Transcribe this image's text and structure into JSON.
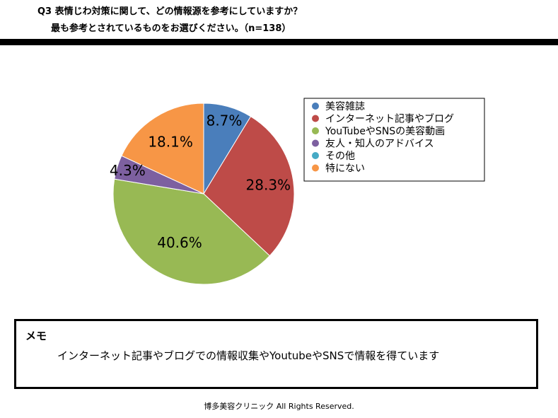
{
  "header": {
    "question_line1": "Q3 表情じわ対策に関して、どの情報源を参考にしていますか？",
    "question_line2": "最も参考とされているものをお選びください。（n=138）"
  },
  "chart_data": {
    "type": "pie",
    "title": "",
    "unit": "%",
    "start_angle_deg": 0,
    "direction": "clockwise",
    "legend_position": "right",
    "categories": [
      "美容雑誌",
      "インターネット記事やブログ",
      "YouTubeやSNSの美容動画",
      "友人・知人のアドバイス",
      "その他",
      "特にない"
    ],
    "values": [
      8.7,
      28.3,
      40.6,
      4.3,
      0,
      18.1
    ],
    "data_labels": [
      "8.7%",
      "28.3%",
      "40.6%",
      "4.3%",
      "",
      "18.1%"
    ],
    "colors": [
      "#4a7ebb",
      "#be4b48",
      "#98b954",
      "#7d60a0",
      "#46aac5",
      "#f79646"
    ]
  },
  "memo": {
    "title": "メモ",
    "text": "インターネット記事やブログでの情報収集やYoutubeやSNSで情報を得ています"
  },
  "footer": {
    "copyright": "博多美容クリニック All Rights Reserved."
  }
}
